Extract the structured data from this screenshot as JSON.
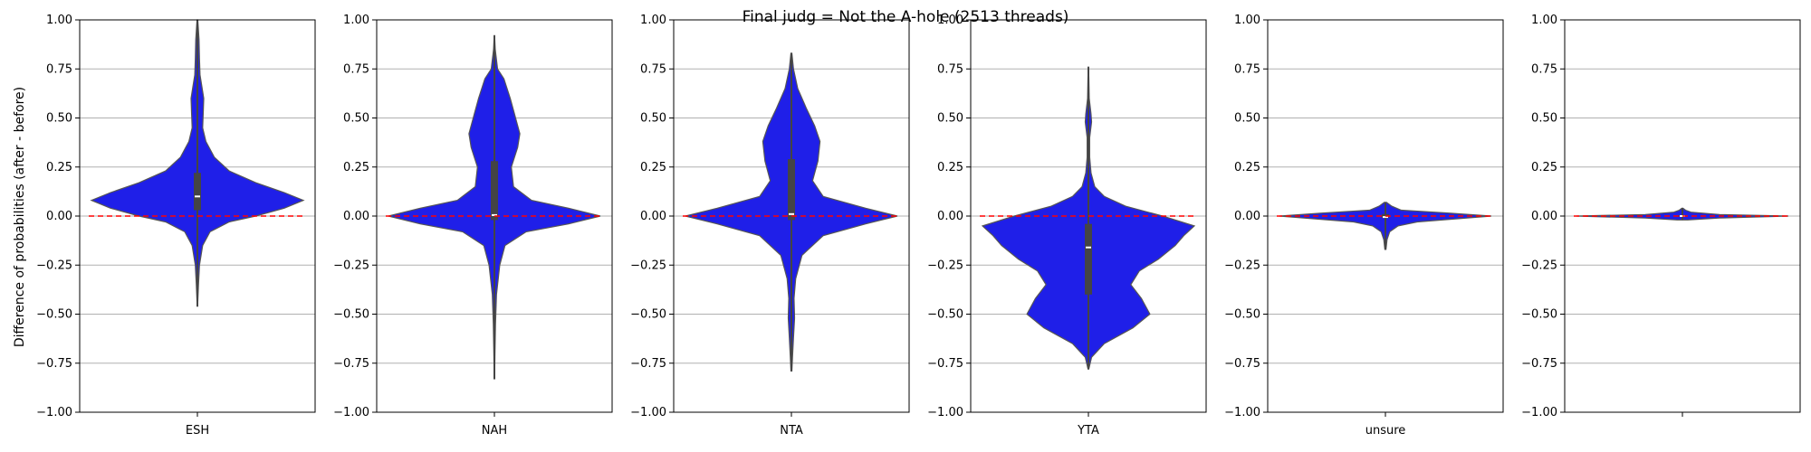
{
  "figure": {
    "title": "Final judg = Not the A-hole (2513 threads)",
    "ylabel": "Difference of probabilities (after - before)"
  },
  "colors": {
    "violin_fill": "#1f1fe8",
    "violin_edge": "#555555",
    "box": "#444444",
    "median": "#ffffff",
    "reference_line": "#ff0000",
    "grid": "#b0b0b0"
  },
  "chart_data": [
    {
      "type": "violin",
      "category": "ESH",
      "ylim": [
        -1,
        1
      ],
      "yticks": [
        "1.00",
        "0.75",
        "0.50",
        "0.25",
        "0.00",
        "−0.25",
        "−0.50",
        "−0.75",
        "−1.00"
      ],
      "grid": true,
      "reference_line_y": 0,
      "min": -0.46,
      "max": 1.0,
      "q1": 0.03,
      "median": 0.1,
      "q3": 0.22,
      "density": [
        [
          -0.46,
          0.002
        ],
        [
          -0.35,
          0.01
        ],
        [
          -0.25,
          0.02
        ],
        [
          -0.15,
          0.05
        ],
        [
          -0.08,
          0.12
        ],
        [
          -0.03,
          0.3
        ],
        [
          0.0,
          0.55
        ],
        [
          0.04,
          0.82
        ],
        [
          0.08,
          1.0
        ],
        [
          0.12,
          0.82
        ],
        [
          0.17,
          0.55
        ],
        [
          0.23,
          0.3
        ],
        [
          0.3,
          0.16
        ],
        [
          0.38,
          0.08
        ],
        [
          0.45,
          0.05
        ],
        [
          0.52,
          0.055
        ],
        [
          0.6,
          0.06
        ],
        [
          0.65,
          0.045
        ],
        [
          0.72,
          0.025
        ],
        [
          0.8,
          0.02
        ],
        [
          0.9,
          0.015
        ],
        [
          1.0,
          0.003
        ]
      ]
    },
    {
      "type": "violin",
      "category": "NAH",
      "ylim": [
        -1,
        1
      ],
      "yticks": [
        "1.00",
        "0.75",
        "0.50",
        "0.25",
        "0.00",
        "−0.25",
        "−0.50",
        "−0.75",
        "−1.00"
      ],
      "grid": true,
      "reference_line_y": 0,
      "min": -0.83,
      "max": 0.92,
      "q1": -0.02,
      "median": 0.005,
      "q3": 0.28,
      "density": [
        [
          -0.83,
          0.002
        ],
        [
          -0.7,
          0.005
        ],
        [
          -0.55,
          0.01
        ],
        [
          -0.4,
          0.02
        ],
        [
          -0.25,
          0.05
        ],
        [
          -0.15,
          0.1
        ],
        [
          -0.08,
          0.3
        ],
        [
          -0.04,
          0.7
        ],
        [
          0.0,
          1.0
        ],
        [
          0.04,
          0.7
        ],
        [
          0.08,
          0.35
        ],
        [
          0.15,
          0.18
        ],
        [
          0.25,
          0.16
        ],
        [
          0.35,
          0.22
        ],
        [
          0.42,
          0.24
        ],
        [
          0.5,
          0.2
        ],
        [
          0.6,
          0.15
        ],
        [
          0.7,
          0.09
        ],
        [
          0.75,
          0.03
        ],
        [
          0.85,
          0.008
        ],
        [
          0.92,
          0.002
        ]
      ]
    },
    {
      "type": "violin",
      "category": "NTA",
      "ylim": [
        -1,
        1
      ],
      "yticks": [
        "1.00",
        "0.75",
        "0.50",
        "0.25",
        "0.00",
        "−0.25",
        "−0.50",
        "−0.75",
        "−1.00"
      ],
      "grid": true,
      "reference_line_y": 0,
      "min": -0.79,
      "max": 0.83,
      "q1": -0.02,
      "median": 0.01,
      "q3": 0.29,
      "density": [
        [
          -0.79,
          0.004
        ],
        [
          -0.72,
          0.01
        ],
        [
          -0.62,
          0.02
        ],
        [
          -0.52,
          0.03
        ],
        [
          -0.42,
          0.025
        ],
        [
          -0.32,
          0.04
        ],
        [
          -0.2,
          0.1
        ],
        [
          -0.1,
          0.3
        ],
        [
          -0.04,
          0.7
        ],
        [
          0.0,
          1.0
        ],
        [
          0.04,
          0.7
        ],
        [
          0.1,
          0.3
        ],
        [
          0.18,
          0.2
        ],
        [
          0.28,
          0.25
        ],
        [
          0.38,
          0.27
        ],
        [
          0.46,
          0.22
        ],
        [
          0.55,
          0.14
        ],
        [
          0.65,
          0.06
        ],
        [
          0.75,
          0.02
        ],
        [
          0.83,
          0.004
        ]
      ]
    },
    {
      "type": "violin",
      "category": "YTA",
      "ylim": [
        -1,
        1
      ],
      "yticks": [
        "1.00",
        "0.75",
        "0.50",
        "0.25",
        "0.00",
        "−0.25",
        "−0.50",
        "−0.75",
        "−1.00"
      ],
      "grid": true,
      "reference_line_y": 0,
      "min": -0.78,
      "max": 0.76,
      "q1": -0.4,
      "median": -0.16,
      "q3": -0.04,
      "density": [
        [
          -0.78,
          0.003
        ],
        [
          -0.72,
          0.03
        ],
        [
          -0.65,
          0.15
        ],
        [
          -0.57,
          0.42
        ],
        [
          -0.5,
          0.58
        ],
        [
          -0.42,
          0.5
        ],
        [
          -0.35,
          0.4
        ],
        [
          -0.28,
          0.48
        ],
        [
          -0.22,
          0.66
        ],
        [
          -0.15,
          0.82
        ],
        [
          -0.1,
          0.9
        ],
        [
          -0.05,
          1.0
        ],
        [
          0.0,
          0.7
        ],
        [
          0.05,
          0.35
        ],
        [
          0.1,
          0.15
        ],
        [
          0.15,
          0.06
        ],
        [
          0.22,
          0.025
        ],
        [
          0.3,
          0.012
        ],
        [
          0.4,
          0.012
        ],
        [
          0.48,
          0.03
        ],
        [
          0.52,
          0.025
        ],
        [
          0.6,
          0.008
        ],
        [
          0.7,
          0.004
        ],
        [
          0.76,
          0.001
        ]
      ]
    },
    {
      "type": "violin",
      "category": "unsure",
      "ylim": [
        -1,
        1
      ],
      "yticks": [
        "1.00",
        "0.75",
        "0.50",
        "0.25",
        "0.00",
        "−0.25",
        "−0.50",
        "−0.75",
        "−1.00"
      ],
      "grid": true,
      "reference_line_y": 0,
      "min": -0.17,
      "max": 0.07,
      "q1": -0.01,
      "median": -0.005,
      "q3": 0.01,
      "density": [
        [
          -0.17,
          0.005
        ],
        [
          -0.12,
          0.015
        ],
        [
          -0.08,
          0.04
        ],
        [
          -0.05,
          0.12
        ],
        [
          -0.03,
          0.3
        ],
        [
          -0.015,
          0.65
        ],
        [
          0.0,
          1.0
        ],
        [
          0.015,
          0.6
        ],
        [
          0.03,
          0.15
        ],
        [
          0.05,
          0.06
        ],
        [
          0.07,
          0.01
        ]
      ]
    },
    {
      "type": "violin",
      "category": "",
      "ylim": [
        -1,
        1
      ],
      "yticks": [
        "1.00",
        "0.75",
        "0.50",
        "0.25",
        "0.00",
        "−0.25",
        "−0.50",
        "−0.75",
        "−1.00"
      ],
      "grid": true,
      "reference_line_y": 0,
      "min": -0.02,
      "max": 0.04,
      "q1": -0.003,
      "median": 0.0,
      "q3": 0.005,
      "density": [
        [
          -0.02,
          0.05
        ],
        [
          -0.01,
          0.35
        ],
        [
          0.0,
          1.0
        ],
        [
          0.008,
          0.35
        ],
        [
          0.02,
          0.08
        ],
        [
          0.03,
          0.03
        ],
        [
          0.04,
          0.005
        ]
      ]
    }
  ]
}
